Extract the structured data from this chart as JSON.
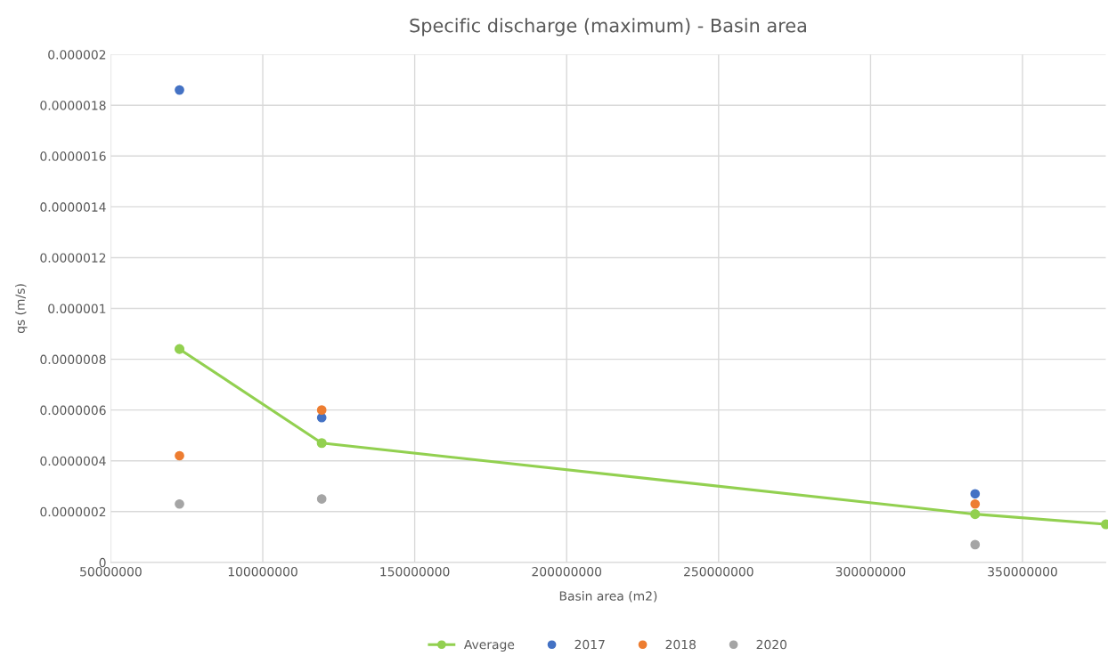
{
  "chart_data": {
    "type": "scatter",
    "title": "Specific discharge (maximum) - Basin area",
    "xlabel": "Basin area (m2)",
    "ylabel": "qs (m/s)",
    "series": [
      {
        "name": "Average",
        "type": "line",
        "color": "#92d050",
        "marker": "circle",
        "x": [
          72600000,
          119400000,
          334400000,
          377400000
        ],
        "values": [
          8.4e-07,
          4.7e-07,
          1.9e-07,
          1.5e-07
        ]
      },
      {
        "name": "2017",
        "color": "#4472c4",
        "marker": "circle",
        "x": [
          72600000,
          119400000,
          334400000
        ],
        "values": [
          1.86e-06,
          5.7e-07,
          2.7e-07
        ]
      },
      {
        "name": "2018",
        "color": "#ed7d31",
        "marker": "circle",
        "x": [
          72600000,
          119400000,
          334400000
        ],
        "values": [
          4.2e-07,
          6e-07,
          2.3e-07
        ]
      },
      {
        "name": "2020",
        "color": "#a5a5a5",
        "marker": "circle",
        "x": [
          72600000,
          119400000,
          334400000
        ],
        "values": [
          2.3e-07,
          2.5e-07,
          7e-08
        ]
      }
    ],
    "xlim": [
      50000000,
      377400000
    ],
    "xticks": [
      50000000,
      100000000,
      150000000,
      200000000,
      250000000,
      300000000,
      350000000
    ],
    "ylim": [
      0,
      2e-06
    ],
    "yticks": [
      0,
      {
        "value": 2e-07,
        "label": "0.0000002"
      },
      {
        "value": 4e-07,
        "label": "0.0000004"
      },
      {
        "value": 6e-07,
        "label": "0.0000006"
      },
      {
        "value": 8e-07,
        "label": "0.0000008"
      },
      {
        "value": 1e-06,
        "label": "0.000001"
      },
      {
        "value": 1.2e-06,
        "label": "0.0000012"
      },
      {
        "value": 1.4e-06,
        "label": "0.0000014"
      },
      {
        "value": 1.6e-06,
        "label": "0.0000016"
      },
      {
        "value": 1.8e-06,
        "label": "0.0000018"
      },
      {
        "value": 2e-06,
        "label": "0.000002"
      }
    ],
    "grid": true,
    "legend": "bottom"
  }
}
